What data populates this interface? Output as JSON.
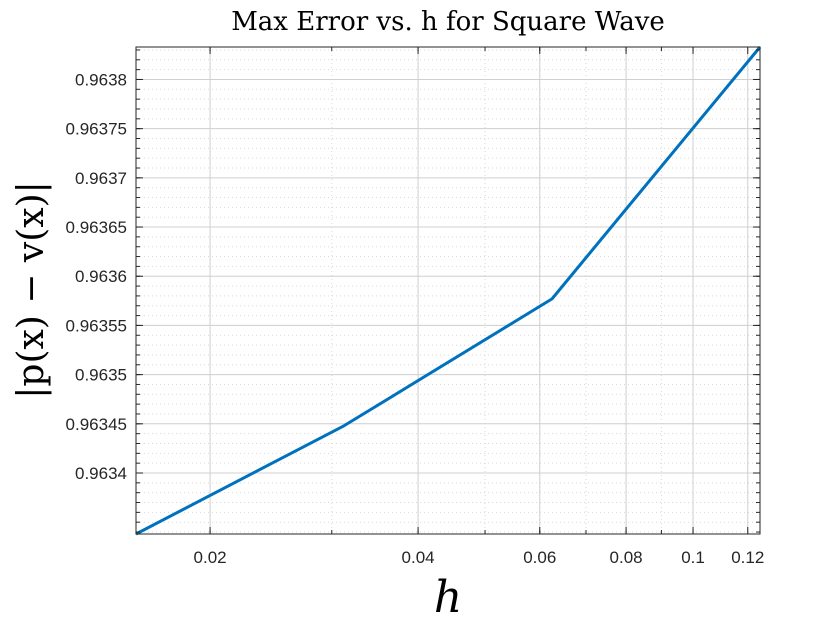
{
  "chart_data": {
    "type": "line",
    "title": "Max Error vs. h for Square Wave",
    "xlabel": "h",
    "ylabel": "|p(x) − v(x)|",
    "xscale": "log",
    "yscale": "linear",
    "xlim": [
      0.015625,
      0.125
    ],
    "ylim": [
      0.963338,
      0.963833
    ],
    "grid": true,
    "minor_grid": true,
    "x_ticks": [
      0.02,
      0.04,
      0.06,
      0.08,
      0.1,
      0.12
    ],
    "x_tick_labels": [
      "0.02",
      "0.04",
      "0.06",
      "0.08",
      "0.1",
      "0.12"
    ],
    "y_ticks": [
      0.9634,
      0.96345,
      0.9635,
      0.96355,
      0.9636,
      0.96365,
      0.9637,
      0.96375,
      0.9638
    ],
    "y_tick_labels": [
      "0.9634",
      "0.96345",
      "0.9635",
      "0.96355",
      "0.9636",
      "0.96365",
      "0.9637",
      "0.96375",
      "0.9638"
    ],
    "series": [
      {
        "color": "#0072BD",
        "x": [
          0.015625,
          0.03125,
          0.0625,
          0.125
        ],
        "y": [
          0.963338,
          0.963448,
          0.963577,
          0.963833
        ]
      }
    ]
  }
}
